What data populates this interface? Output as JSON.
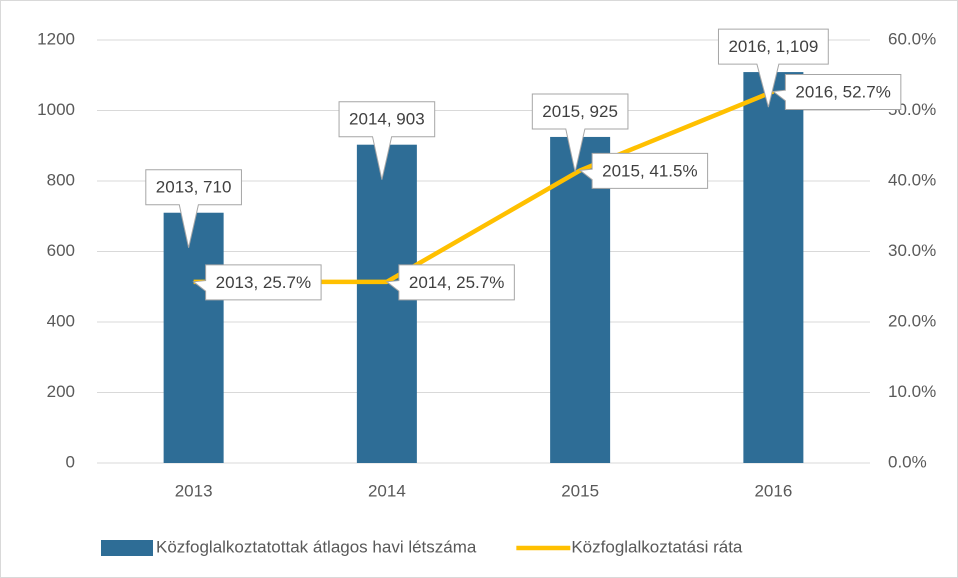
{
  "chart_data": {
    "type": "bar-line",
    "categories": [
      "2013",
      "2014",
      "2015",
      "2016"
    ],
    "series": [
      {
        "name": "Közfoglalkoztatottak átlagos havi létszáma",
        "type": "bar",
        "color": "#2e6d96",
        "values": [
          710,
          903,
          925,
          1109
        ],
        "value_labels": [
          "2013, 710",
          "2014, 903",
          "2015, 925",
          "2016, 1,109"
        ]
      },
      {
        "name": "Közfoglalkoztatási ráta",
        "type": "line",
        "axis": "y2",
        "color": "#ffc000",
        "values": [
          25.7,
          25.7,
          41.5,
          52.7
        ],
        "value_labels": [
          "2013, 25.7%",
          "2014, 25.7%",
          "2015, 41.5%",
          "2016, 52.7%"
        ]
      }
    ],
    "ylim": [
      0,
      1200
    ],
    "yticks": [
      0,
      200,
      400,
      600,
      800,
      1000,
      1200
    ],
    "y2lim": [
      0,
      60
    ],
    "y2ticks": [
      {
        "value": 0,
        "label": "0.0%"
      },
      {
        "value": 10,
        "label": "10.0%"
      },
      {
        "value": 20,
        "label": "20.0%"
      },
      {
        "value": 30,
        "label": "30.0%"
      },
      {
        "value": 40,
        "label": "40.0%"
      },
      {
        "value": 50,
        "label": "50.0%"
      },
      {
        "value": 60,
        "label": "60.0%"
      }
    ],
    "grid": true,
    "legend": "bottom"
  }
}
